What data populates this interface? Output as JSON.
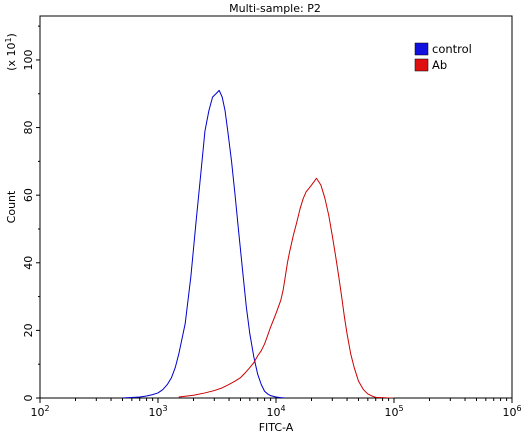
{
  "chart_data": {
    "type": "line",
    "title": "Multi-sample: P2",
    "xlabel": "FITC-A",
    "ylabel": "Count",
    "y_multiplier": "(x 10^1)",
    "x_scale": "log",
    "xlim": [
      100,
      1000000
    ],
    "ylim": [
      0,
      113
    ],
    "x_ticks": [
      {
        "base": "10",
        "exp": "2",
        "value": 100
      },
      {
        "base": "10",
        "exp": "3",
        "value": 1000
      },
      {
        "base": "10",
        "exp": "4",
        "value": 10000
      },
      {
        "base": "10",
        "exp": "5",
        "value": 100000
      },
      {
        "base": "10",
        "exp": "6",
        "value": 1000000
      }
    ],
    "y_ticks": [
      "0",
      "20",
      "40",
      "60",
      "80",
      "100"
    ],
    "legend_position": "top-right",
    "series": [
      {
        "name": "control",
        "color": "#0000cc",
        "legend_color": "#1010e0",
        "x": [
          500,
          700,
          800,
          900,
          1000,
          1100,
          1200,
          1300,
          1400,
          1500,
          1700,
          1900,
          2100,
          2300,
          2500,
          2700,
          2900,
          3100,
          3300,
          3500,
          3700,
          3900,
          4200,
          4500,
          4800,
          5200,
          5600,
          6000,
          6500,
          7000,
          7500,
          8000,
          8500,
          9000,
          10000,
          11000,
          12000
        ],
        "y": [
          0,
          0.3,
          0.6,
          1,
          1.5,
          2.5,
          4,
          6,
          9,
          13,
          22,
          36,
          52,
          66,
          79,
          85,
          89,
          90,
          91,
          89,
          85,
          79,
          70,
          60,
          50,
          38,
          27,
          19,
          12,
          7,
          4,
          2,
          1.2,
          0.7,
          0.3,
          0.1,
          0
        ]
      },
      {
        "name": "Ab",
        "color": "#cc0000",
        "legend_color": "#e01010",
        "x": [
          1500,
          2000,
          2500,
          3000,
          3500,
          4000,
          4500,
          5000,
          5500,
          6000,
          6500,
          7000,
          7500,
          8000,
          8500,
          9000,
          9500,
          10000,
          10500,
          11000,
          11500,
          12000,
          12500,
          13000,
          14000,
          15000,
          16000,
          17000,
          18000,
          19000,
          20000,
          21000,
          22000,
          23000,
          24000,
          25000,
          26000,
          28000,
          30000,
          32000,
          34000,
          36000,
          38000,
          40000,
          43000,
          46000,
          50000,
          55000,
          60000,
          65000,
          70000,
          80000,
          90000,
          100000
        ],
        "y": [
          0.3,
          0.8,
          1.5,
          2.2,
          3,
          4,
          5,
          6,
          7.5,
          9,
          10.5,
          12.5,
          14,
          16,
          18.5,
          21,
          23,
          25,
          27,
          29,
          32,
          36,
          40,
          43,
          48,
          52,
          56,
          59,
          61,
          62,
          63,
          64,
          65,
          64,
          63,
          61,
          59,
          54,
          48,
          42,
          36,
          30,
          24,
          19,
          13,
          9,
          5,
          2.5,
          1.2,
          0.6,
          0.2,
          0.1,
          0,
          0
        ]
      }
    ]
  }
}
